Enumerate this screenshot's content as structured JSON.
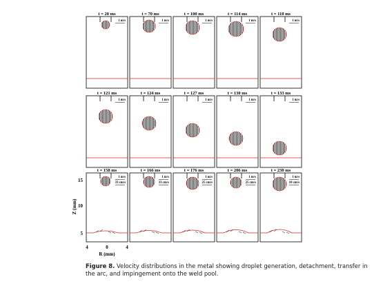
{
  "figure": {
    "panels": [
      {
        "time": "t = 20 ms",
        "scales": [
          "1 m/s"
        ]
      },
      {
        "time": "t = 70 ms",
        "scales": [
          "1 m/s"
        ]
      },
      {
        "time": "t = 100 ms",
        "scales": [
          "1 m/s"
        ]
      },
      {
        "time": "t = 114 ms",
        "scales": [
          "1 m/s"
        ]
      },
      {
        "time": "t = 118 ms",
        "scales": [
          "1 m/s"
        ]
      },
      {
        "time": "t = 121 ms",
        "scales": [
          "1 m/s"
        ]
      },
      {
        "time": "t = 124 ms",
        "scales": [
          "1 m/s"
        ]
      },
      {
        "time": "t = 127 ms",
        "scales": [
          "1 m/s"
        ]
      },
      {
        "time": "t = 130 ms",
        "scales": [
          "1 m/s"
        ]
      },
      {
        "time": "t = 133 ms",
        "scales": [
          "1 m/s"
        ]
      },
      {
        "time": "t = 158 ms",
        "scales": [
          "1 m/s",
          "33 cm/s"
        ]
      },
      {
        "time": "t = 166 ms",
        "scales": [
          "1 m/s",
          "33 cm/s"
        ]
      },
      {
        "time": "t = 176 ms",
        "scales": [
          "1 m/s",
          "25 cm/s"
        ]
      },
      {
        "time": "t = 206 ms",
        "scales": [
          "1 m/s",
          "25 cm/s"
        ]
      },
      {
        "time": "t = 230 ms",
        "scales": [
          "1 m/s",
          "10 cm/s"
        ]
      }
    ],
    "z_axis": {
      "label": "Z (mm)",
      "ticks": [
        "15",
        "10",
        "5"
      ]
    },
    "r_axis": {
      "label": "R (mm)",
      "ticks": [
        "4",
        "0",
        "4"
      ]
    },
    "caption": {
      "label": "Figure 8.",
      "text": "Velocity distributions in the metal showing droplet generation, detachment, transfer in the arc, and impingement onto the weld pool."
    }
  }
}
